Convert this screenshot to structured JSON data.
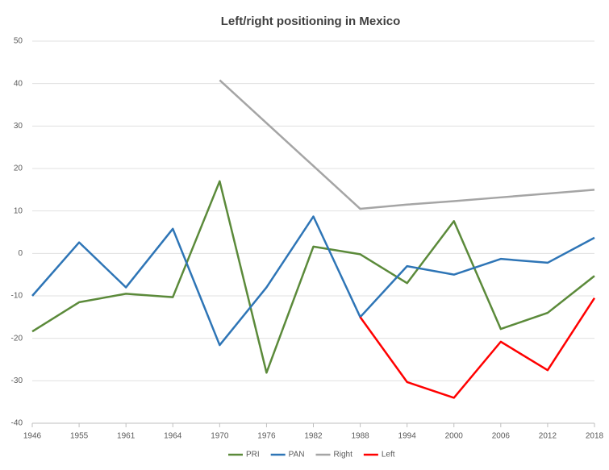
{
  "chart_data": {
    "type": "line",
    "title": "Left/right positioning in Mexico",
    "categories": [
      "1946",
      "1955",
      "1961",
      "1964",
      "1970",
      "1976",
      "1982",
      "1988",
      "1994",
      "2000",
      "2006",
      "2012",
      "2018"
    ],
    "series": [
      {
        "name": "PRI",
        "color": "#5b8a3a",
        "values": [
          -18.4,
          -11.5,
          -9.5,
          -10.3,
          17,
          -28.1,
          1.6,
          -0.2,
          -7,
          7.6,
          -17.8,
          -14,
          -5.3
        ]
      },
      {
        "name": "PAN",
        "color": "#2e75b6",
        "values": [
          -10,
          2.6,
          -8,
          5.8,
          -21.6,
          -8,
          8.7,
          -15,
          -3,
          -5,
          -1.3,
          -2.2,
          3.7
        ]
      },
      {
        "name": "Right",
        "color": "#a5a5a5",
        "values": [
          null,
          null,
          null,
          null,
          40.8,
          30.7,
          20.6,
          10.5,
          11.5,
          12.3,
          13.2,
          14.1,
          15
        ]
      },
      {
        "name": "Left",
        "color": "#ff0000",
        "values": [
          null,
          null,
          null,
          null,
          null,
          null,
          null,
          -15,
          -30.3,
          -34,
          -20.8,
          -27.5,
          -10.5
        ]
      }
    ],
    "ylim": [
      -40,
      50
    ],
    "yticks": [
      -40,
      -30,
      -20,
      -10,
      0,
      10,
      20,
      30,
      40,
      50
    ],
    "grid": true,
    "legend": "bottom"
  }
}
